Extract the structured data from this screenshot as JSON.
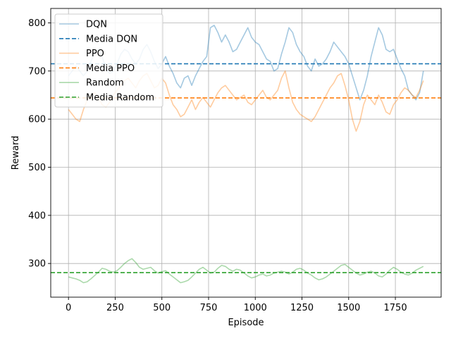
{
  "chart_data": {
    "type": "line",
    "title": "",
    "xlabel": "Episode",
    "ylabel": "Reward",
    "xlim": [
      -95,
      1995
    ],
    "ylim": [
      230,
      830
    ],
    "xticks": [
      0,
      250,
      500,
      750,
      1000,
      1250,
      1500,
      1750
    ],
    "yticks": [
      300,
      400,
      500,
      600,
      700,
      800
    ],
    "grid": true,
    "legend_position": "top-left",
    "legend": [
      "DQN",
      "Media DQN",
      "PPO",
      "Media PPO",
      "Random",
      "Media Random"
    ],
    "series": [
      {
        "name": "DQN",
        "color": "#1f77b4",
        "alpha": 0.4,
        "x": [
          0,
          20,
          40,
          60,
          80,
          100,
          120,
          140,
          160,
          180,
          200,
          220,
          240,
          260,
          280,
          300,
          320,
          340,
          360,
          380,
          400,
          420,
          440,
          460,
          480,
          500,
          520,
          540,
          560,
          580,
          600,
          620,
          640,
          660,
          680,
          700,
          720,
          740,
          760,
          780,
          800,
          820,
          840,
          860,
          880,
          900,
          920,
          940,
          960,
          980,
          1000,
          1020,
          1040,
          1060,
          1080,
          1100,
          1120,
          1140,
          1160,
          1180,
          1200,
          1220,
          1240,
          1260,
          1280,
          1300,
          1320,
          1340,
          1360,
          1380,
          1400,
          1420,
          1440,
          1460,
          1480,
          1500,
          1520,
          1540,
          1560,
          1580,
          1600,
          1620,
          1640,
          1660,
          1680,
          1700,
          1720,
          1740,
          1760,
          1780,
          1800,
          1820,
          1840,
          1860,
          1880,
          1900
        ],
        "y": [
          690,
          700,
          710,
          700,
          690,
          700,
          720,
          740,
          745,
          730,
          705,
          695,
          700,
          715,
          735,
          745,
          740,
          725,
          715,
          725,
          745,
          755,
          740,
          720,
          705,
          715,
          730,
          710,
          695,
          675,
          665,
          685,
          690,
          670,
          690,
          705,
          720,
          730,
          790,
          795,
          780,
          760,
          775,
          760,
          740,
          745,
          760,
          775,
          790,
          770,
          760,
          755,
          740,
          725,
          720,
          700,
          705,
          735,
          760,
          790,
          780,
          755,
          740,
          730,
          710,
          700,
          725,
          710,
          715,
          725,
          740,
          760,
          750,
          740,
          730,
          715,
          690,
          665,
          640,
          660,
          690,
          730,
          760,
          790,
          775,
          745,
          740,
          745,
          725,
          705,
          690,
          660,
          650,
          640,
          655,
          700
        ]
      },
      {
        "name": "Media DQN",
        "color": "#1f77b4",
        "alpha": 1.0,
        "dashed": true,
        "y": 715
      },
      {
        "name": "PPO",
        "color": "#ff7f0e",
        "alpha": 0.4,
        "x": [
          0,
          20,
          40,
          60,
          80,
          100,
          120,
          140,
          160,
          180,
          200,
          220,
          240,
          260,
          280,
          300,
          320,
          340,
          360,
          380,
          400,
          420,
          440,
          460,
          480,
          500,
          520,
          540,
          560,
          580,
          600,
          620,
          640,
          660,
          680,
          700,
          720,
          740,
          760,
          780,
          800,
          820,
          840,
          860,
          880,
          900,
          920,
          940,
          960,
          980,
          1000,
          1020,
          1040,
          1060,
          1080,
          1100,
          1120,
          1140,
          1160,
          1180,
          1200,
          1220,
          1240,
          1260,
          1280,
          1300,
          1320,
          1340,
          1360,
          1380,
          1400,
          1420,
          1440,
          1460,
          1480,
          1500,
          1520,
          1540,
          1560,
          1580,
          1600,
          1620,
          1640,
          1660,
          1680,
          1700,
          1720,
          1740,
          1760,
          1780,
          1800,
          1820,
          1840,
          1860,
          1880,
          1900
        ],
        "y": [
          620,
          610,
          600,
          595,
          620,
          640,
          650,
          655,
          645,
          630,
          625,
          635,
          650,
          660,
          670,
          680,
          685,
          675,
          665,
          680,
          690,
          695,
          680,
          665,
          670,
          685,
          675,
          650,
          630,
          620,
          605,
          610,
          625,
          640,
          620,
          635,
          645,
          635,
          625,
          640,
          655,
          665,
          670,
          660,
          650,
          640,
          645,
          650,
          635,
          630,
          640,
          650,
          660,
          645,
          640,
          650,
          660,
          685,
          700,
          665,
          635,
          620,
          610,
          605,
          600,
          595,
          605,
          620,
          635,
          650,
          665,
          675,
          690,
          695,
          670,
          640,
          600,
          575,
          595,
          630,
          650,
          640,
          630,
          650,
          635,
          615,
          610,
          630,
          640,
          655,
          665,
          660,
          650,
          645,
          660,
          680
        ]
      },
      {
        "name": "Media PPO",
        "color": "#ff7f0e",
        "alpha": 1.0,
        "dashed": true,
        "y": 644
      },
      {
        "name": "Random",
        "color": "#2ca02c",
        "alpha": 0.4,
        "x": [
          0,
          20,
          40,
          60,
          80,
          100,
          120,
          140,
          160,
          180,
          200,
          220,
          240,
          260,
          280,
          300,
          320,
          340,
          360,
          380,
          400,
          420,
          440,
          460,
          480,
          500,
          520,
          540,
          560,
          580,
          600,
          620,
          640,
          660,
          680,
          700,
          720,
          740,
          760,
          780,
          800,
          820,
          840,
          860,
          880,
          900,
          920,
          940,
          960,
          980,
          1000,
          1020,
          1040,
          1060,
          1080,
          1100,
          1120,
          1140,
          1160,
          1180,
          1200,
          1220,
          1240,
          1260,
          1280,
          1300,
          1320,
          1340,
          1360,
          1380,
          1400,
          1420,
          1440,
          1460,
          1480,
          1500,
          1520,
          1540,
          1560,
          1580,
          1600,
          1620,
          1640,
          1660,
          1680,
          1700,
          1720,
          1740,
          1760,
          1780,
          1800,
          1820,
          1840,
          1860,
          1880,
          1900
        ],
        "y": [
          272,
          270,
          268,
          265,
          260,
          262,
          268,
          275,
          282,
          290,
          288,
          284,
          282,
          285,
          292,
          300,
          306,
          310,
          302,
          292,
          288,
          290,
          292,
          285,
          280,
          283,
          285,
          278,
          272,
          266,
          260,
          262,
          265,
          272,
          280,
          288,
          292,
          286,
          280,
          282,
          290,
          296,
          294,
          288,
          284,
          288,
          286,
          280,
          274,
          270,
          272,
          276,
          278,
          274,
          276,
          280,
          282,
          284,
          282,
          278,
          282,
          288,
          290,
          286,
          280,
          276,
          270,
          266,
          268,
          272,
          278,
          284,
          290,
          296,
          298,
          292,
          286,
          280,
          276,
          278,
          282,
          284,
          280,
          274,
          272,
          278,
          286,
          292,
          288,
          282,
          278,
          276,
          280,
          286,
          290,
          294
        ]
      },
      {
        "name": "Media Random",
        "color": "#2ca02c",
        "alpha": 1.0,
        "dashed": true,
        "y": 281
      }
    ]
  }
}
